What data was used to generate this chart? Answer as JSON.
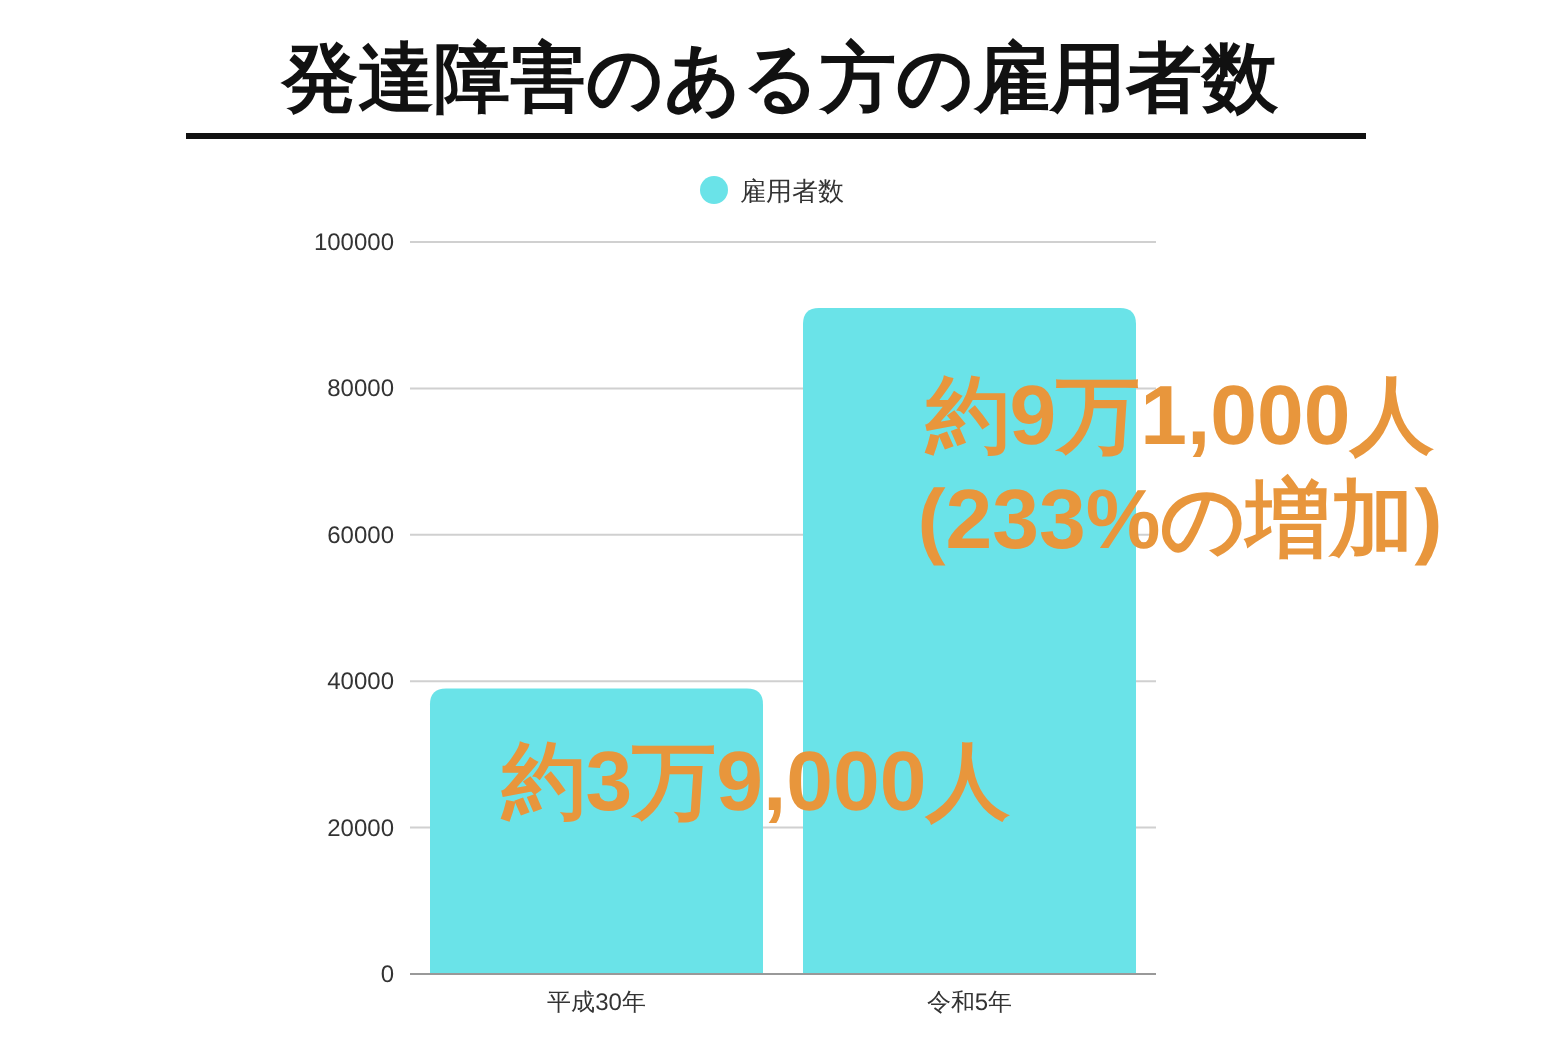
{
  "chart_data": {
    "type": "bar",
    "title": "発達障害のある方の雇用者数",
    "categories": [
      "平成30年",
      "令和5年"
    ],
    "series": [
      {
        "name": "雇用者数",
        "color": "#6ae3e8",
        "values": [
          39000,
          91000
        ]
      }
    ],
    "ylim": [
      0,
      100000
    ],
    "yticks": [
      0,
      20000,
      40000,
      60000,
      80000,
      100000
    ],
    "grid": "y",
    "legend": "top",
    "annotations": [
      "約3万9,000人",
      "約9万1,000人\n(233%の増加)"
    ]
  }
}
